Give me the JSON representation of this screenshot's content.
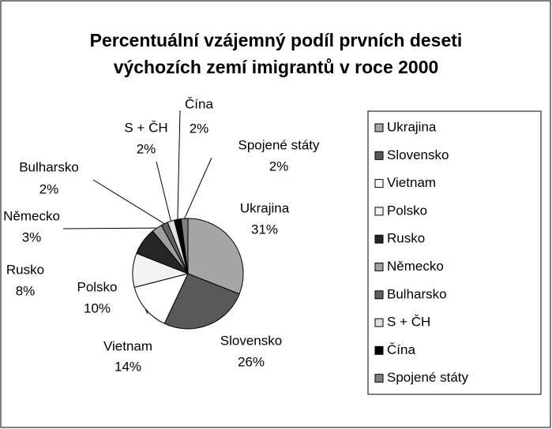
{
  "chart_data": {
    "type": "pie",
    "title": "Percentuální vzájemný podíl prvních deseti výchozích zemí imigrantů v roce 2000",
    "categories": [
      "Ukrajina",
      "Slovensko",
      "Vietnam",
      "Polsko",
      "Rusko",
      "Německo",
      "Bulharsko",
      "S + ČH",
      "Čína",
      "Spojené státy"
    ],
    "values": [
      31,
      26,
      14,
      10,
      8,
      3,
      2,
      2,
      2,
      2
    ],
    "value_labels": [
      "31%",
      "26%",
      "14%",
      "10%",
      "8%",
      "3%",
      "2%",
      "2%",
      "2%",
      "2%"
    ],
    "colors": [
      "#a6a6a6",
      "#595959",
      "#ffffff",
      "#f2f2f2",
      "#262626",
      "#a0a0a0",
      "#606060",
      "#e0e0e0",
      "#000000",
      "#808080"
    ],
    "legend": "right"
  }
}
